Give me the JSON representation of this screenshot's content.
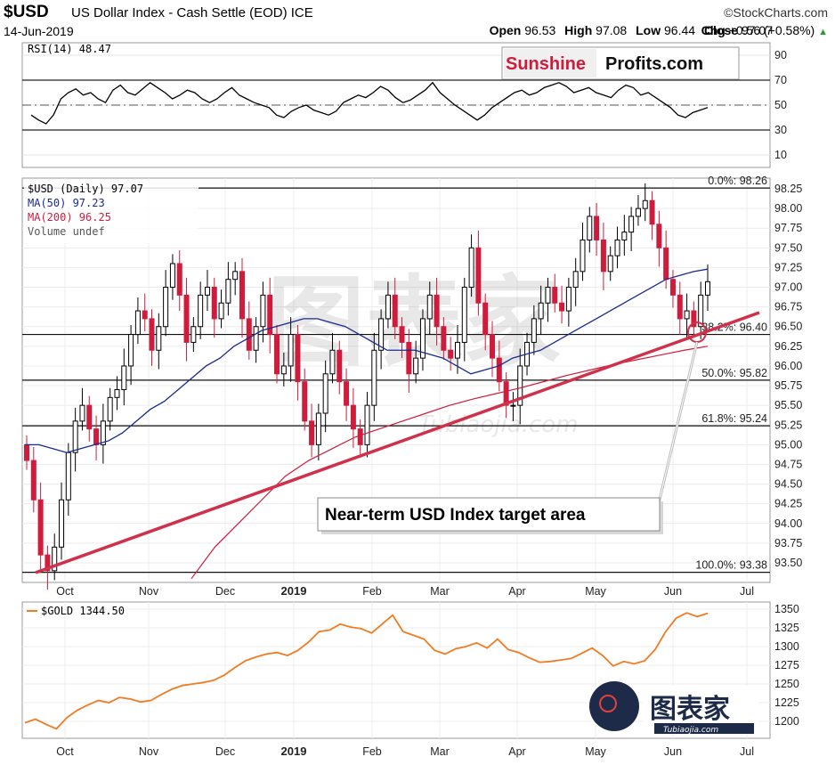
{
  "header": {
    "symbol": "$USD",
    "name": "US Dollar Index - Cash Settle (EOD)",
    "exchange": "ICE",
    "brand": "©StockCharts.com",
    "date": "14-Jun-2019",
    "open_label": "Open",
    "open": "96.53",
    "high_label": "High",
    "high": "97.08",
    "low_label": "Low",
    "low": "96.44",
    "close_label": "Close",
    "close": "97.07",
    "chg_label": "Chg",
    "chg": "+0.56 (+0.58%)"
  },
  "logo": {
    "sunshine": "Sunshine",
    "profits": "Profits.com"
  },
  "watermark": {
    "cn": "图表家",
    "site": "Tubiaojia.com"
  },
  "annotation": "Near-term USD Index target area",
  "colors": {
    "up": "#000000",
    "down": "#d01c3c",
    "ma50": "#1a2a8c",
    "ma200": "#d01c3c",
    "trend": "#d0304a",
    "gold": "#f07b22",
    "rsi": "#000000"
  },
  "chart_data": [
    {
      "type": "line",
      "title": "RSI(14) 48.47",
      "series": [
        {
          "name": "RSI(14)",
          "values": [
            42,
            38,
            35,
            42,
            55,
            60,
            63,
            58,
            60,
            55,
            52,
            62,
            66,
            60,
            58,
            63,
            68,
            64,
            60,
            55,
            58,
            62,
            60,
            55,
            52,
            55,
            60,
            64,
            58,
            55,
            52,
            50,
            48,
            42,
            40,
            45,
            48,
            50,
            46,
            44,
            42,
            45,
            52,
            55,
            58,
            56,
            60,
            65,
            62,
            56,
            52,
            54,
            58,
            62,
            68,
            60,
            55,
            50,
            46,
            42,
            38,
            42,
            48,
            52,
            56,
            60,
            62,
            58,
            60,
            64,
            66,
            68,
            65,
            60,
            62,
            64,
            60,
            58,
            56,
            62,
            66,
            64,
            58,
            60,
            56,
            52,
            48,
            42,
            40,
            44,
            46,
            48
          ]
        }
      ],
      "ylim": [
        0,
        100
      ],
      "ticks": [
        90,
        70,
        50,
        30,
        10
      ],
      "levels": [
        70,
        50,
        30
      ]
    },
    {
      "type": "candlestick",
      "title": "$USD (Daily) 97.07",
      "legend": [
        "$USD (Daily) 97.07",
        "MA(50) 97.23",
        "MA(200) 96.25",
        "Volume undef"
      ],
      "ylim": [
        93.35,
        98.4
      ],
      "ticks": [
        "98.25",
        "98.00",
        "97.75",
        "97.50",
        "97.25",
        "97.00",
        "96.75",
        "96.50",
        "96.25",
        "96.00",
        "95.75",
        "95.50",
        "95.25",
        "95.00",
        "94.75",
        "94.50",
        "94.25",
        "94.00",
        "93.75",
        "93.50"
      ],
      "x_ticks": [
        "Oct",
        "Nov",
        "Dec",
        "2019",
        "Feb",
        "Mar",
        "Apr",
        "May",
        "Jun",
        "Jul"
      ],
      "fib_levels": [
        {
          "label": "0.0%: 98.26",
          "value": 98.26
        },
        {
          "label": "38.2%: 96.40",
          "value": 96.4
        },
        {
          "label": "50.0%: 95.82",
          "value": 95.82
        },
        {
          "label": "61.8%: 95.24",
          "value": 95.24
        },
        {
          "label": "100.0%: 93.38",
          "value": 93.38
        }
      ],
      "close": [
        94.8,
        94.3,
        93.6,
        93.4,
        93.7,
        94.3,
        94.9,
        95.3,
        95.5,
        95.2,
        95.0,
        95.3,
        95.6,
        95.7,
        96.0,
        96.4,
        96.7,
        96.6,
        96.2,
        96.5,
        97.0,
        97.3,
        96.9,
        96.3,
        96.5,
        96.9,
        97.0,
        96.6,
        96.8,
        97.1,
        97.2,
        96.6,
        96.2,
        96.5,
        96.9,
        96.4,
        95.9,
        96.0,
        96.4,
        95.8,
        95.3,
        95.0,
        95.4,
        95.9,
        96.2,
        95.8,
        95.5,
        95.2,
        95.0,
        95.5,
        96.2,
        96.6,
        96.9,
        96.5,
        96.3,
        95.9,
        96.1,
        96.6,
        96.9,
        96.5,
        96.2,
        96.1,
        96.3,
        97.0,
        97.5,
        96.8,
        96.4,
        96.1,
        95.8,
        95.5,
        95.5,
        96.0,
        96.3,
        96.6,
        96.8,
        97.0,
        96.8,
        96.7,
        97.0,
        97.2,
        97.6,
        97.9,
        97.6,
        97.2,
        97.4,
        97.6,
        97.7,
        97.9,
        98.0,
        98.1,
        97.8,
        97.5,
        97.1,
        96.9,
        96.6,
        96.7,
        96.5,
        96.9,
        97.07
      ],
      "series": [
        {
          "name": "MA(50)",
          "values": [
            95.0,
            95.0,
            94.95,
            94.9,
            94.95,
            95.0,
            95.05,
            95.15,
            95.3,
            95.45,
            95.55,
            95.7,
            95.85,
            96.0,
            96.1,
            96.25,
            96.35,
            96.45,
            96.5,
            96.55,
            96.6,
            96.6,
            96.55,
            96.5,
            96.4,
            96.3,
            96.2,
            96.2,
            96.2,
            96.15,
            96.1,
            96.0,
            95.9,
            95.95,
            96.0,
            96.1,
            96.15,
            96.2,
            96.3,
            96.4,
            96.5,
            96.6,
            96.7,
            96.8,
            96.9,
            97.0,
            97.1,
            97.15,
            97.2,
            97.23
          ]
        },
        {
          "name": "MA(200)",
          "values": [
            93.3,
            93.7,
            94.0,
            94.3,
            94.6,
            94.8,
            94.95,
            95.1,
            95.2,
            95.3,
            95.4,
            95.5,
            95.58,
            95.65,
            95.72,
            95.8,
            95.88,
            95.95,
            96.02,
            96.08,
            96.14,
            96.2,
            96.25
          ]
        }
      ]
    },
    {
      "type": "line",
      "title": "$GOLD 1344.50",
      "series": [
        {
          "name": "$GOLD",
          "values": [
            1198,
            1203,
            1196,
            1190,
            1205,
            1215,
            1222,
            1228,
            1225,
            1232,
            1230,
            1226,
            1228,
            1236,
            1243,
            1248,
            1250,
            1252,
            1255,
            1262,
            1272,
            1281,
            1286,
            1290,
            1292,
            1288,
            1295,
            1306,
            1320,
            1322,
            1330,
            1326,
            1324,
            1318,
            1330,
            1342,
            1320,
            1315,
            1310,
            1295,
            1290,
            1297,
            1300,
            1305,
            1298,
            1310,
            1296,
            1292,
            1285,
            1279,
            1280,
            1282,
            1284,
            1291,
            1298,
            1288,
            1274,
            1280,
            1277,
            1281,
            1296,
            1320,
            1338,
            1345,
            1340,
            1344.5
          ]
        }
      ],
      "ylim": [
        1185,
        1355
      ],
      "ticks": [
        "1350",
        "1325",
        "1300",
        "1275",
        "1250",
        "1225",
        "1200"
      ],
      "x_ticks": [
        "Oct",
        "Nov",
        "Dec",
        "2019",
        "Feb",
        "Mar",
        "Apr",
        "May",
        "Jun",
        "Jul"
      ]
    }
  ]
}
